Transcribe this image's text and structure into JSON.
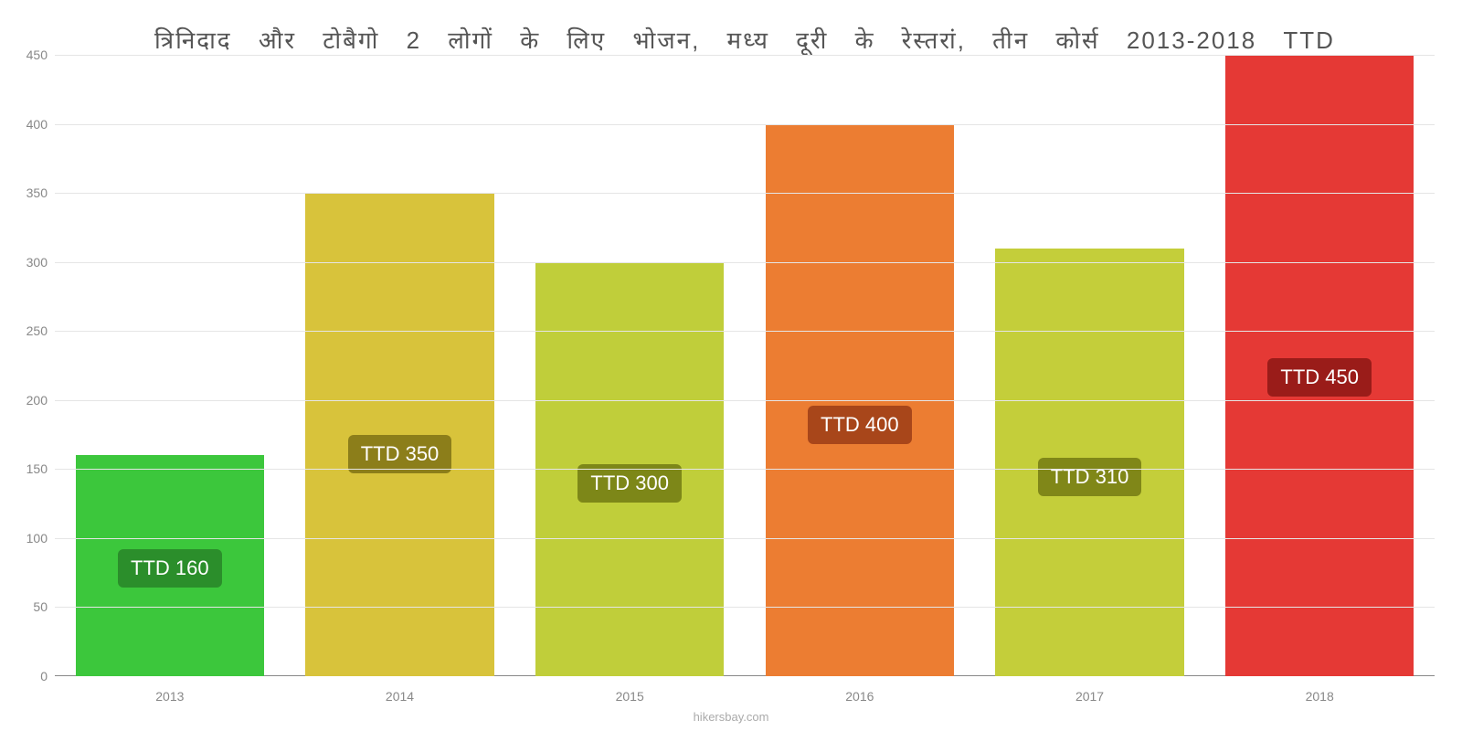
{
  "chart": {
    "type": "bar",
    "title": "त्रिनिदाद और टोबैगो 2 लोगों के लिए भोजन, मध्य दूरी के रेस्तरां, तीन कोर्स 2013-2018 TTD",
    "attribution": "hikersbay.com",
    "ylim": [
      0,
      450
    ],
    "ytick_step": 50,
    "yticks": [
      0,
      50,
      100,
      150,
      200,
      250,
      300,
      350,
      400,
      450
    ],
    "background_color": "#ffffff",
    "grid_color": "#e5e5e5",
    "axis_text_color": "#888888",
    "title_color": "#555555",
    "title_fontsize": 26,
    "series": [
      {
        "year": "2013",
        "value": 160,
        "label": "TTD 160",
        "bar_color": "#3cc73c",
        "label_bg": "#2b8e2b"
      },
      {
        "year": "2014",
        "value": 350,
        "label": "TTD 350",
        "bar_color": "#d8c33b",
        "label_bg": "#8c7e1a"
      },
      {
        "year": "2015",
        "value": 300,
        "label": "TTD 300",
        "bar_color": "#c0ce3a",
        "label_bg": "#7d8718"
      },
      {
        "year": "2016",
        "value": 400,
        "label": "TTD 400",
        "bar_color": "#ec7d32",
        "label_bg": "#a8461a"
      },
      {
        "year": "2017",
        "value": 310,
        "label": "TTD 310",
        "bar_color": "#c4ce3a",
        "label_bg": "#808718"
      },
      {
        "year": "2018",
        "value": 450,
        "label": "TTD 450",
        "bar_color": "#e53935",
        "label_bg": "#9a1c19"
      }
    ]
  }
}
